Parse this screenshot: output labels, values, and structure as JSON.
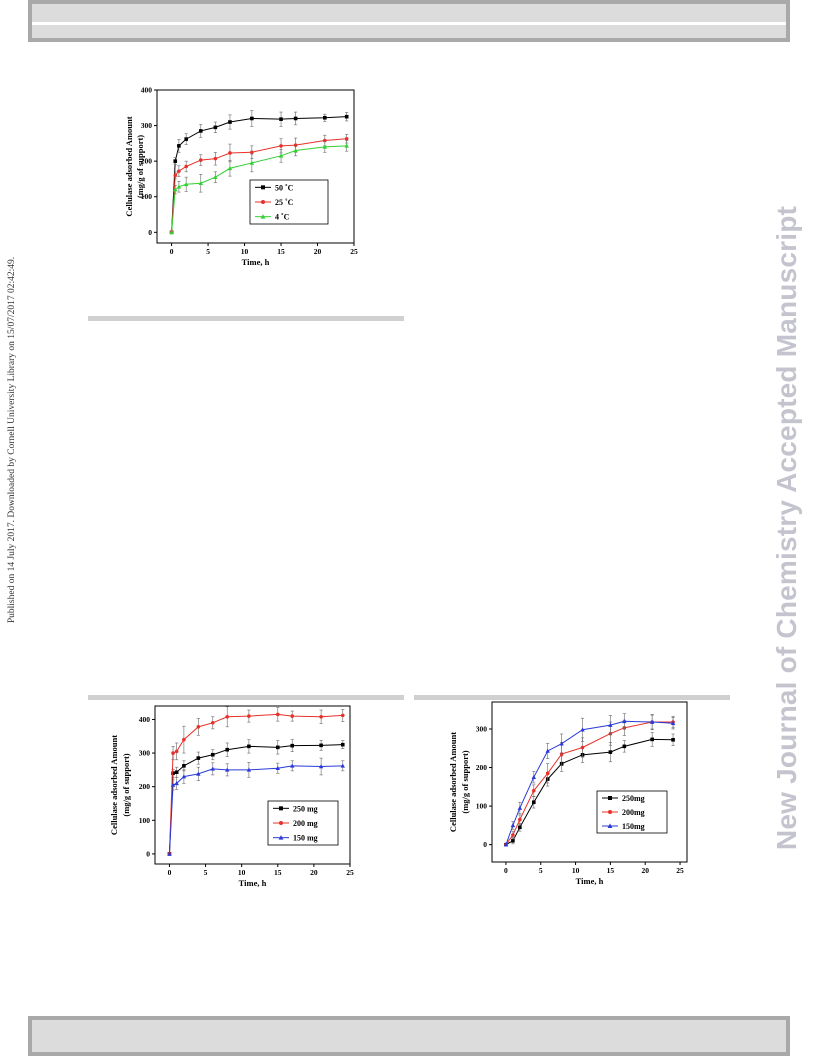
{
  "side_text": "Published on 14 July 2017. Downloaded by Cornell University Library on 15/07/2017 02:42:49.",
  "watermark": "New Journal of Chemistry Accepted Manuscript",
  "chart_data": [
    {
      "type": "line",
      "xlabel": "Time, h",
      "ylabel_line1": "Cellulase adsorbed Amount",
      "ylabel_line2": "(mg/g of support)",
      "xlim": [
        -2,
        25
      ],
      "ylim": [
        -30,
        400
      ],
      "xticks": [
        0,
        5,
        10,
        15,
        20,
        25
      ],
      "yticks": [
        0,
        100,
        200,
        300,
        400
      ],
      "x": [
        0,
        0.5,
        1,
        2,
        4,
        6,
        8,
        11,
        15,
        17,
        21,
        24
      ],
      "series": [
        {
          "name": "50 ˚C",
          "color": "#000000",
          "marker": "square",
          "values": [
            0,
            200,
            243,
            262,
            285,
            295,
            310,
            320,
            318,
            320,
            322,
            325
          ],
          "errors": [
            0,
            10,
            18,
            15,
            18,
            15,
            20,
            22,
            20,
            18,
            10,
            12
          ]
        },
        {
          "name": "25 ˚C",
          "color": "#e8302a",
          "marker": "circle",
          "values": [
            0,
            160,
            172,
            185,
            203,
            207,
            223,
            225,
            243,
            245,
            258,
            263
          ],
          "errors": [
            0,
            10,
            15,
            15,
            15,
            18,
            25,
            18,
            20,
            20,
            15,
            12
          ]
        },
        {
          "name": "4 ˚C",
          "color": "#33d033",
          "marker": "triangle",
          "values": [
            0,
            120,
            128,
            135,
            138,
            155,
            180,
            195,
            215,
            230,
            240,
            243
          ],
          "errors": [
            0,
            12,
            15,
            20,
            25,
            15,
            22,
            25,
            18,
            15,
            15,
            15
          ]
        }
      ],
      "legend_position": "bottom-right"
    },
    {
      "type": "line",
      "xlabel": "Time, h",
      "ylabel_line1": "Cellulase adsorbed Amount",
      "ylabel_line2": "(mg/g of support)",
      "xlim": [
        -2,
        25
      ],
      "ylim": [
        -30,
        440
      ],
      "xticks": [
        0,
        5,
        10,
        15,
        20,
        25
      ],
      "yticks": [
        0,
        100,
        200,
        300,
        400
      ],
      "x": [
        0,
        0.5,
        1,
        2,
        4,
        6,
        8,
        11,
        15,
        17,
        21,
        24
      ],
      "series": [
        {
          "name": "250 mg",
          "color": "#000000",
          "marker": "square",
          "values": [
            0,
            240,
            243,
            262,
            285,
            295,
            310,
            320,
            317,
            322,
            323,
            325
          ],
          "errors": [
            0,
            12,
            15,
            15,
            18,
            15,
            20,
            20,
            20,
            18,
            15,
            12
          ]
        },
        {
          "name": "200 mg",
          "color": "#e8302a",
          "marker": "circle",
          "values": [
            0,
            300,
            305,
            340,
            378,
            390,
            408,
            410,
            415,
            410,
            408,
            412
          ],
          "errors": [
            0,
            20,
            25,
            40,
            25,
            18,
            30,
            18,
            20,
            15,
            20,
            18
          ]
        },
        {
          "name": "150 mg",
          "color": "#2a3ad8",
          "marker": "triangle",
          "values": [
            0,
            205,
            210,
            230,
            238,
            253,
            250,
            250,
            255,
            262,
            260,
            262
          ],
          "errors": [
            0,
            15,
            18,
            20,
            20,
            18,
            18,
            22,
            15,
            15,
            25,
            15
          ]
        }
      ],
      "legend_position": "bottom-right"
    },
    {
      "type": "line",
      "xlabel": "Time, h",
      "ylabel_line1": "Cellulase adsorbed Amount",
      "ylabel_line2": "(mg/g of support)",
      "xlim": [
        -2,
        26
      ],
      "ylim": [
        -45,
        370
      ],
      "xticks": [
        0,
        5,
        10,
        15,
        20,
        25
      ],
      "yticks": [
        0,
        100,
        200,
        300
      ],
      "x": [
        0,
        1,
        2,
        4,
        6,
        8,
        11,
        15,
        17,
        21,
        24
      ],
      "series": [
        {
          "name": "250mg",
          "color": "#000000",
          "marker": "square",
          "values": [
            0,
            10,
            45,
            110,
            170,
            210,
            233,
            240,
            255,
            273,
            272
          ],
          "errors": [
            0,
            8,
            10,
            15,
            18,
            20,
            20,
            25,
            15,
            18,
            15
          ]
        },
        {
          "name": "200mg",
          "color": "#e8302a",
          "marker": "circle",
          "values": [
            0,
            25,
            65,
            140,
            185,
            235,
            252,
            288,
            303,
            318,
            318
          ],
          "errors": [
            0,
            10,
            12,
            15,
            25,
            30,
            25,
            30,
            20,
            20,
            15
          ]
        },
        {
          "name": "150mg",
          "color": "#2a3ad8",
          "marker": "triangle",
          "values": [
            0,
            50,
            95,
            175,
            243,
            262,
            298,
            310,
            320,
            318,
            315
          ],
          "errors": [
            0,
            10,
            15,
            15,
            20,
            25,
            30,
            25,
            20,
            18,
            15
          ]
        }
      ],
      "legend_position": "bottom-right"
    }
  ]
}
